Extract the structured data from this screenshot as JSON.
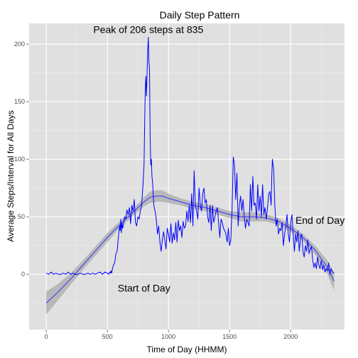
{
  "chart_data": {
    "type": "line",
    "title": "Daily Step Pattern",
    "xlabel": "Time of Day (HHMM)",
    "ylabel": "Average Steps/Interval for All Days",
    "xlim": [
      -140,
      2440
    ],
    "ylim": [
      -48,
      218
    ],
    "x_ticks": [
      0,
      500,
      1000,
      1500,
      2000
    ],
    "y_ticks": [
      0,
      50,
      100,
      150,
      200
    ],
    "grid": true,
    "background": "#e0e0e0",
    "line_color": "#0000ff",
    "smooth_color": "#3333ff",
    "ribbon_color": "#b0b0b0",
    "series": [
      {
        "values_x": [
          0,
          20,
          40,
          60,
          80,
          100,
          120,
          140,
          160,
          180,
          200,
          220,
          240,
          260,
          280,
          300,
          320,
          340,
          360,
          380,
          400,
          420,
          440,
          460,
          480,
          500,
          510,
          520,
          525,
          530,
          535,
          540,
          550,
          560,
          570,
          580,
          590,
          600,
          605,
          610,
          615,
          620,
          625,
          630,
          640,
          650,
          660,
          670,
          680,
          690,
          700,
          710,
          720,
          730,
          740,
          750,
          760,
          770,
          780,
          790,
          800,
          805,
          810,
          815,
          820,
          825,
          830,
          835,
          840,
          845,
          850,
          855,
          860,
          865,
          870,
          880,
          890,
          900,
          910,
          920,
          930,
          940,
          950,
          960,
          970,
          980,
          990,
          1000,
          1010,
          1020,
          1030,
          1040,
          1050,
          1060,
          1070,
          1080,
          1090,
          1100,
          1110,
          1120,
          1130,
          1140,
          1150,
          1160,
          1170,
          1180,
          1190,
          1200,
          1210,
          1220,
          1230,
          1240,
          1250,
          1260,
          1270,
          1280,
          1290,
          1300,
          1310,
          1320,
          1330,
          1340,
          1350,
          1360,
          1370,
          1380,
          1390,
          1400,
          1410,
          1420,
          1430,
          1440,
          1450,
          1460,
          1470,
          1480,
          1490,
          1500,
          1510,
          1515,
          1520,
          1530,
          1540,
          1550,
          1560,
          1570,
          1580,
          1590,
          1600,
          1610,
          1620,
          1630,
          1640,
          1650,
          1660,
          1670,
          1680,
          1690,
          1700,
          1710,
          1720,
          1730,
          1740,
          1750,
          1760,
          1770,
          1780,
          1790,
          1800,
          1810,
          1820,
          1830,
          1840,
          1845,
          1850,
          1860,
          1870,
          1880,
          1890,
          1900,
          1910,
          1920,
          1930,
          1940,
          1950,
          1960,
          1970,
          1980,
          1990,
          2000,
          2010,
          2020,
          2030,
          2040,
          2050,
          2060,
          2070,
          2080,
          2090,
          2100,
          2110,
          2120,
          2130,
          2140,
          2150,
          2160,
          2170,
          2180,
          2190,
          2200,
          2210,
          2220,
          2230,
          2240,
          2250,
          2260,
          2270,
          2280,
          2290,
          2300,
          2310,
          2320,
          2330,
          2340,
          2355
        ],
        "values_y": [
          1,
          0,
          2,
          0,
          1,
          0,
          0,
          1,
          0,
          2,
          0,
          1,
          0,
          0,
          1,
          0,
          0,
          1,
          0,
          1,
          0,
          1,
          2,
          0,
          2,
          1,
          0,
          2,
          1,
          3,
          1,
          4,
          8,
          10,
          18,
          20,
          32,
          42,
          38,
          48,
          36,
          45,
          40,
          42,
          50,
          48,
          56,
          52,
          58,
          44,
          60,
          55,
          65,
          45,
          42,
          50,
          48,
          55,
          60,
          75,
          95,
          130,
          160,
          172,
          155,
          175,
          195,
          206,
          185,
          178,
          120,
          95,
          100,
          85,
          80,
          60,
          55,
          48,
          35,
          42,
          28,
          20,
          30,
          37,
          30,
          22,
          40,
          35,
          28,
          44,
          27,
          36,
          30,
          45,
          28,
          47,
          38,
          42,
          32,
          46,
          40,
          42,
          55,
          46,
          60,
          45,
          70,
          42,
          90,
          60,
          55,
          48,
          75,
          60,
          55,
          70,
          75,
          62,
          65,
          50,
          45,
          60,
          38,
          60,
          45,
          50,
          55,
          58,
          45,
          32,
          48,
          45,
          40,
          38,
          35,
          28,
          40,
          25,
          30,
          45,
          55,
          102,
          95,
          65,
          88,
          42,
          60,
          68,
          55,
          65,
          50,
          40,
          48,
          45,
          42,
          78,
          55,
          85,
          60,
          62,
          48,
          78,
          55,
          68,
          50,
          78,
          52,
          58,
          48,
          58,
          70,
          72,
          60,
          85,
          100,
          92,
          60,
          42,
          48,
          35,
          40,
          38,
          45,
          25,
          35,
          42,
          52,
          35,
          28,
          45,
          52,
          35,
          20,
          35,
          28,
          38,
          20,
          32,
          35,
          20,
          15,
          25,
          20,
          30,
          18,
          22,
          24,
          12,
          6,
          10,
          5,
          15,
          8,
          5,
          12,
          4,
          8,
          2,
          5,
          3,
          10,
          0,
          5,
          2,
          1
        ]
      }
    ],
    "smooth": {
      "x": [
        0,
        100,
        200,
        300,
        400,
        500,
        600,
        700,
        800,
        850,
        900,
        950,
        1000,
        1100,
        1200,
        1300,
        1400,
        1500,
        1600,
        1700,
        1800,
        1900,
        2000,
        2100,
        2200,
        2300,
        2355
      ],
      "y": [
        -25,
        -15,
        -4,
        8,
        20,
        32,
        43,
        53,
        63,
        67,
        68,
        68,
        66,
        63,
        60,
        58,
        55,
        52,
        50,
        50,
        49,
        46,
        40,
        32,
        21,
        6,
        -6
      ],
      "band": [
        10,
        7,
        5,
        4,
        4,
        4,
        3,
        3,
        4,
        5,
        5,
        5,
        4,
        3,
        3,
        3,
        3,
        3,
        4,
        4,
        3,
        3,
        3,
        3,
        4,
        6,
        8
      ]
    },
    "annotations": [
      {
        "text": "Peak of  206  steps at  835",
        "x": 835,
        "y": 206
      },
      {
        "text": "Start of Day",
        "x": 800,
        "y": -12
      },
      {
        "text": "End of Day",
        "x": 2240,
        "y": 47
      }
    ]
  }
}
